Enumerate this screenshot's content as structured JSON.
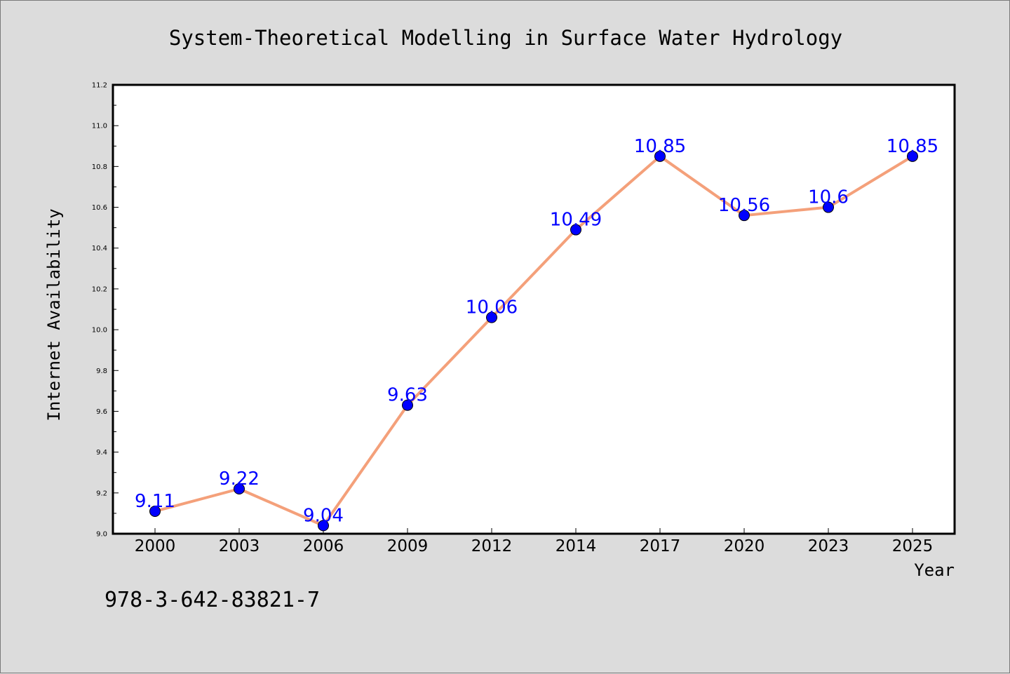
{
  "chart_data": {
    "type": "line",
    "title": "System-Theoretical Modelling in Surface Water Hydrology",
    "xlabel": "Year",
    "ylabel": "Internet Availability",
    "categories": [
      "2000",
      "2003",
      "2006",
      "2009",
      "2012",
      "2014",
      "2017",
      "2020",
      "2023",
      "2025"
    ],
    "values": [
      9.11,
      9.22,
      9.04,
      9.63,
      10.06,
      10.49,
      10.85,
      10.56,
      10.6,
      10.85
    ],
    "data_labels": [
      "9.11",
      "9.22",
      "9.04",
      "9.63",
      "10.06",
      "10.49",
      "10.85",
      "10.56",
      "10.6",
      "10.85"
    ],
    "ylim": [
      9.0,
      11.2
    ],
    "yticks": [
      "9.0",
      "9.2",
      "9.4",
      "9.6",
      "9.8",
      "10.0",
      "10.2",
      "10.4",
      "10.6",
      "10.8",
      "11.0",
      "11.2"
    ],
    "grid": false,
    "line_color": "#f4a07a",
    "marker_color": "#0000ff",
    "label_color": "#0000ff"
  },
  "footnote": "978-3-642-83821-7"
}
